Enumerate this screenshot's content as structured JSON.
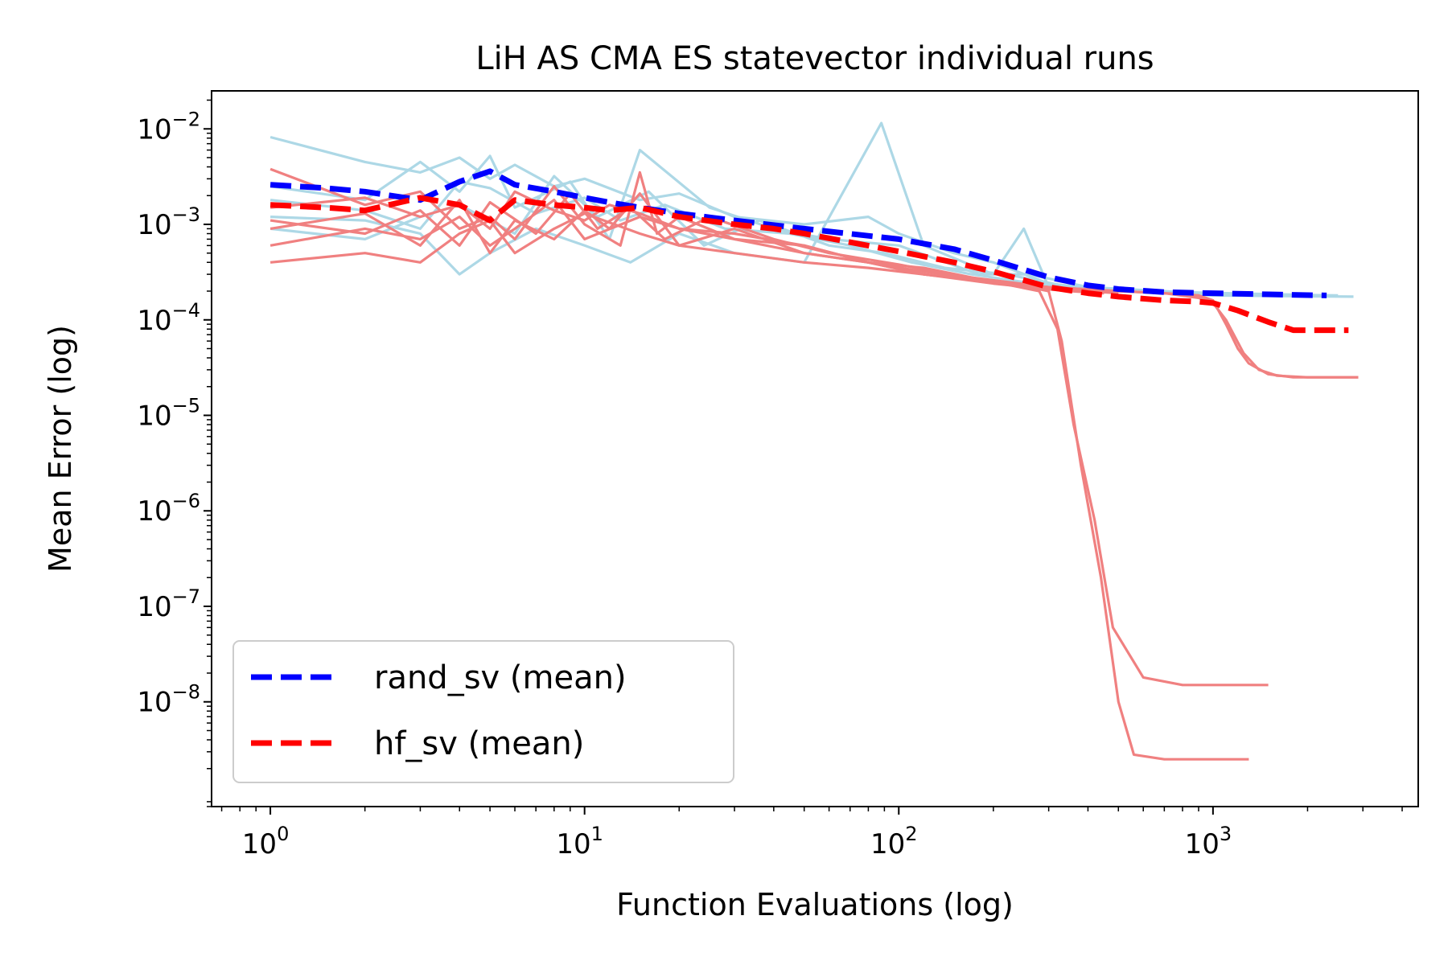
{
  "chart_data": {
    "type": "line",
    "title": "LiH AS CMA ES statevector individual runs",
    "xlabel": "Function Evaluations (log)",
    "ylabel": "Mean Error (log)",
    "xscale": "log",
    "yscale": "log",
    "xlim": [
      0.65,
      4500
    ],
    "ylim": [
      8e-10,
      0.025
    ],
    "x_ticks": [
      {
        "value": 1,
        "base": "10",
        "exp": "0"
      },
      {
        "value": 10,
        "base": "10",
        "exp": "1"
      },
      {
        "value": 100,
        "base": "10",
        "exp": "2"
      },
      {
        "value": 1000,
        "base": "10",
        "exp": "3"
      }
    ],
    "y_ticks": [
      {
        "value": 0.01,
        "base": "10",
        "exp": "−2"
      },
      {
        "value": 0.001,
        "base": "10",
        "exp": "−3"
      },
      {
        "value": 0.0001,
        "base": "10",
        "exp": "−4"
      },
      {
        "value": 1e-05,
        "base": "10",
        "exp": "−5"
      },
      {
        "value": 1e-06,
        "base": "10",
        "exp": "−6"
      },
      {
        "value": 1e-07,
        "base": "10",
        "exp": "−7"
      },
      {
        "value": 1e-08,
        "base": "10",
        "exp": "−8"
      }
    ],
    "legend": {
      "location": "lower-left",
      "entries": [
        {
          "label": "rand_sv (mean)",
          "color": "#0000ff",
          "style": "dashed"
        },
        {
          "label": "hf_sv (mean)",
          "color": "#ff0000",
          "style": "dashed"
        }
      ]
    },
    "colors": {
      "rand_runs": "#add8e6",
      "hf_runs": "#f08080",
      "rand_mean": "#0000ff",
      "hf_mean": "#ff0000"
    },
    "series": [
      {
        "name": "rand_sv (mean)",
        "role": "mean",
        "group": "rand",
        "x": [
          1,
          1.5,
          2,
          3,
          4,
          5,
          6,
          8,
          10,
          12,
          15,
          20,
          30,
          50,
          100,
          150,
          200,
          300,
          400,
          500,
          700,
          1000,
          1500,
          2300
        ],
        "y": [
          0.0026,
          0.0024,
          0.0022,
          0.0018,
          0.0028,
          0.0036,
          0.0026,
          0.0022,
          0.0019,
          0.0017,
          0.0015,
          0.0013,
          0.0011,
          0.0009,
          0.0007,
          0.00055,
          0.00042,
          0.00028,
          0.00023,
          0.00021,
          0.000195,
          0.00019,
          0.000185,
          0.00018
        ]
      },
      {
        "name": "hf_sv (mean)",
        "role": "mean",
        "group": "hf",
        "x": [
          1,
          1.5,
          2,
          3,
          4,
          5,
          6,
          8,
          10,
          12,
          15,
          20,
          30,
          40,
          50,
          70,
          100,
          150,
          200,
          300,
          400,
          500,
          700,
          900,
          1000,
          1200,
          1500,
          1800,
          2700
        ],
        "y": [
          0.0016,
          0.0015,
          0.0014,
          0.0019,
          0.0016,
          0.0011,
          0.0018,
          0.0016,
          0.0015,
          0.0014,
          0.0015,
          0.0012,
          0.001,
          0.0009,
          0.0008,
          0.00065,
          0.00052,
          0.0004,
          0.00032,
          0.00022,
          0.00019,
          0.000175,
          0.00016,
          0.000155,
          0.00015,
          0.000125,
          9.5e-05,
          7.8e-05,
          7.8e-05
        ]
      }
    ],
    "runs": [
      {
        "group": "rand",
        "x": [
          1,
          2,
          3,
          4,
          5,
          6,
          8,
          10,
          15,
          20,
          30,
          50,
          80,
          100,
          150,
          200,
          300,
          500,
          1000,
          2800
        ],
        "y": [
          0.0082,
          0.0045,
          0.0035,
          0.005,
          0.003,
          0.0042,
          0.0025,
          0.003,
          0.0018,
          0.0021,
          0.0012,
          0.001,
          0.0012,
          0.0008,
          0.0005,
          0.0004,
          0.00024,
          0.0002,
          0.00018,
          0.000175
        ]
      },
      {
        "group": "rand",
        "x": [
          1,
          2,
          3,
          4,
          5,
          7,
          10,
          14,
          20,
          30,
          50,
          88,
          120,
          200,
          250,
          300,
          600,
          1200,
          2500
        ],
        "y": [
          0.0012,
          0.0011,
          0.0008,
          0.0003,
          0.0005,
          0.0009,
          0.0006,
          0.0004,
          0.0008,
          0.0005,
          0.0004,
          0.0115,
          0.0006,
          0.0003,
          0.0009,
          0.00022,
          0.0002,
          0.000185,
          0.00018
        ]
      },
      {
        "group": "rand",
        "x": [
          1,
          2,
          3,
          4,
          5,
          6,
          9,
          12,
          15,
          25,
          40,
          60,
          100,
          180,
          260,
          400,
          800,
          1600,
          2300
        ],
        "y": [
          0.0025,
          0.0018,
          0.0045,
          0.0022,
          0.0052,
          0.0015,
          0.0028,
          0.0007,
          0.006,
          0.0015,
          0.0009,
          0.0007,
          0.0006,
          0.0003,
          0.0003,
          0.00022,
          0.000195,
          0.000185,
          0.00018
        ]
      },
      {
        "group": "rand",
        "x": [
          1,
          2,
          3,
          4,
          6,
          8,
          11,
          16,
          24,
          36,
          60,
          90,
          140,
          220,
          330,
          500,
          900,
          2000
        ],
        "y": [
          0.0009,
          0.0007,
          0.0012,
          0.0016,
          0.0008,
          0.0032,
          0.0012,
          0.0022,
          0.0006,
          0.0011,
          0.0006,
          0.0005,
          0.00035,
          0.0003,
          0.00023,
          0.0002,
          0.00019,
          0.000182
        ]
      },
      {
        "group": "rand",
        "x": [
          1,
          2,
          3,
          4,
          5,
          7,
          10,
          13,
          18,
          28,
          45,
          70,
          110,
          170,
          270,
          450,
          1000,
          2400
        ],
        "y": [
          0.0018,
          0.0014,
          0.0009,
          0.0028,
          0.0024,
          0.0013,
          0.0019,
          0.0011,
          0.0016,
          0.0009,
          0.0008,
          0.0006,
          0.0004,
          0.0003,
          0.00024,
          0.00021,
          0.00019,
          0.000178
        ]
      },
      {
        "group": "hf",
        "x": [
          1,
          2,
          3,
          4,
          5,
          6,
          8,
          10,
          13,
          15,
          17,
          20,
          30,
          50,
          80,
          120,
          200,
          280,
          320,
          360,
          420,
          480,
          600,
          800,
          1200,
          1500
        ],
        "y": [
          0.0038,
          0.0016,
          0.0022,
          0.0009,
          0.0012,
          0.0007,
          0.0025,
          0.001,
          0.0006,
          0.0035,
          0.0008,
          0.0012,
          0.0007,
          0.0006,
          0.0004,
          0.0003,
          0.00025,
          0.0002,
          8e-05,
          8e-06,
          8e-07,
          6e-08,
          1.8e-08,
          1.5e-08,
          1.5e-08,
          1.5e-08
        ]
      },
      {
        "group": "hf",
        "x": [
          1,
          2,
          3,
          4,
          5,
          6,
          8,
          10,
          12,
          15,
          20,
          30,
          50,
          80,
          120,
          200,
          260,
          300,
          330,
          380,
          440,
          500,
          560,
          700,
          1000,
          1300
        ],
        "y": [
          0.0009,
          0.0013,
          0.0006,
          0.0018,
          0.0005,
          0.0011,
          0.0007,
          0.0014,
          0.0009,
          0.0021,
          0.0006,
          0.0009,
          0.0005,
          0.0004,
          0.00035,
          0.00025,
          0.00022,
          0.0002,
          6e-05,
          3e-06,
          2e-07,
          1e-08,
          2.8e-09,
          2.5e-09,
          2.5e-09,
          2.5e-09
        ]
      },
      {
        "group": "hf",
        "x": [
          1,
          2,
          3,
          4,
          5,
          6,
          8,
          10,
          15,
          20,
          30,
          50,
          80,
          120,
          200,
          300,
          500,
          700,
          900,
          1000,
          1100,
          1200,
          1300,
          1500,
          1800,
          2900
        ],
        "y": [
          0.0006,
          0.0009,
          0.0007,
          0.0012,
          0.0006,
          0.0009,
          0.0018,
          0.0007,
          0.0012,
          0.0009,
          0.0007,
          0.0005,
          0.0004,
          0.00032,
          0.00026,
          0.00022,
          0.0002,
          0.00019,
          0.00018,
          0.00016,
          9e-05,
          5e-05,
          3.5e-05,
          2.7e-05,
          2.5e-05,
          2.5e-05
        ]
      },
      {
        "group": "hf",
        "x": [
          1,
          2,
          3,
          4,
          5,
          6,
          8,
          10,
          15,
          20,
          30,
          50,
          80,
          120,
          200,
          300,
          500,
          700,
          900,
          1000,
          1100,
          1250,
          1400,
          1600,
          2000,
          2900
        ],
        "y": [
          0.0004,
          0.0005,
          0.0004,
          0.0008,
          0.0011,
          0.0005,
          0.0009,
          0.0013,
          0.0008,
          0.0006,
          0.0005,
          0.0004,
          0.00035,
          0.0003,
          0.00025,
          0.00022,
          0.0002,
          0.00019,
          0.00017,
          0.00015,
          0.0001,
          4.5e-05,
          3e-05,
          2.6e-05,
          2.5e-05,
          2.5e-05
        ]
      },
      {
        "group": "hf",
        "x": [
          1,
          2,
          3,
          4,
          5,
          6,
          8,
          10,
          12,
          15,
          20,
          30,
          50,
          80,
          120,
          200,
          300,
          400,
          500
        ],
        "y": [
          0.0015,
          0.0019,
          0.0012,
          0.0016,
          0.0009,
          0.0022,
          0.0014,
          0.0011,
          0.0016,
          0.0013,
          0.0009,
          0.0008,
          0.0006,
          0.0004,
          0.0003,
          0.00024,
          0.00021,
          0.0002,
          0.00019
        ]
      },
      {
        "group": "hf",
        "x": [
          1,
          2,
          3,
          4,
          5,
          7,
          9,
          11,
          14,
          18,
          25,
          40,
          60,
          100,
          160,
          250,
          350,
          450
        ],
        "y": [
          0.0011,
          0.0008,
          0.0014,
          0.0006,
          0.0017,
          0.0008,
          0.0021,
          0.0009,
          0.0015,
          0.0007,
          0.0012,
          0.0007,
          0.0005,
          0.00038,
          0.00028,
          0.00022,
          0.0002,
          0.00019
        ]
      }
    ]
  }
}
